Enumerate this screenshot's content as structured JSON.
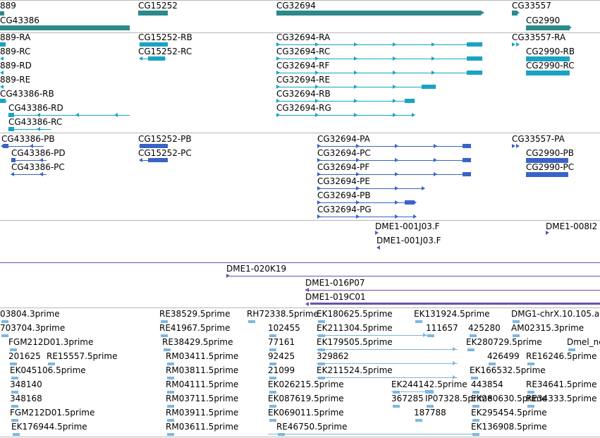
{
  "colors": {
    "gene": "#2c8a8a",
    "mrna_teal": "#1ba3c4",
    "mrna_blue": "#3a63c6",
    "est_purple": "#6b4fae",
    "est_light": "#7fb6dd",
    "separator": "#b7b7b7"
  },
  "tracks": {
    "genes": [
      {
        "label": "889"
      },
      {
        "label": "CG43386"
      },
      {
        "label": "CG15252"
      },
      {
        "label": "CG32694"
      },
      {
        "label": "CG33557"
      },
      {
        "label": "CG2990"
      }
    ],
    "transcripts_a": [
      {
        "label": "889-RA"
      },
      {
        "label": "889-RC"
      },
      {
        "label": "889-RD"
      },
      {
        "label": "889-RE"
      },
      {
        "label": "CG43386-RB"
      },
      {
        "label": "CG43386-RD"
      },
      {
        "label": "CG43386-RC"
      },
      {
        "label": "CG15252-RB"
      },
      {
        "label": "CG15252-RC"
      },
      {
        "label": "CG32694-RA"
      },
      {
        "label": "CG32694-RC"
      },
      {
        "label": "CG32694-RF"
      },
      {
        "label": "CG32694-RE"
      },
      {
        "label": "CG32694-RB"
      },
      {
        "label": "CG32694-RG"
      },
      {
        "label": "CG33557-RA"
      },
      {
        "label": "CG2990-RB"
      },
      {
        "label": "CG2990-RC"
      }
    ],
    "transcripts_b": [
      {
        "label": "CG43386-PB"
      },
      {
        "label": "CG43386-PD"
      },
      {
        "label": "CG43386-PC"
      },
      {
        "label": "CG15252-PB"
      },
      {
        "label": "CG15252-PC"
      },
      {
        "label": "CG32694-PA"
      },
      {
        "label": "CG32694-PC"
      },
      {
        "label": "CG32694-PF"
      },
      {
        "label": "CG32694-PE"
      },
      {
        "label": "CG32694-PB"
      },
      {
        "label": "CG32694-PG"
      },
      {
        "label": "CG33557-PA"
      },
      {
        "label": "CG2990-PB"
      },
      {
        "label": "CG2990-PC"
      }
    ],
    "clones_a": [
      {
        "label": "DME1-001J03.F"
      },
      {
        "label": "DME1-008I2"
      },
      {
        "label": "DME1-001J03.F"
      }
    ],
    "clones_b": [
      {
        "label": "DME1-020K19"
      },
      {
        "label": "DME1-016P07"
      },
      {
        "label": "DME1-019C01"
      }
    ],
    "ests": [
      {
        "label": "03804.3prime"
      },
      {
        "label": "RE38529.5prime"
      },
      {
        "label": "RH72338.5prime"
      },
      {
        "label": "EK180625.5prime"
      },
      {
        "label": "EK131924.5prime"
      },
      {
        "label": "DMG1-chrX.10.105.a"
      },
      {
        "label": "703704.3prime"
      },
      {
        "label": "RE41967.5prime"
      },
      {
        "label": "102455"
      },
      {
        "label": "EK211304.5prime"
      },
      {
        "label": "111657"
      },
      {
        "label": "425280"
      },
      {
        "label": "AM02315.3prime"
      },
      {
        "label": "FGM212D01.3prime"
      },
      {
        "label": "RE38429.5prime"
      },
      {
        "label": "77161"
      },
      {
        "label": "EK179505.5prime"
      },
      {
        "label": "EK280729.5prime"
      },
      {
        "label": "Dmel_ne"
      },
      {
        "label": "201625"
      },
      {
        "label": "RE15557.5prime"
      },
      {
        "label": "RM03411.5prime"
      },
      {
        "label": "92425"
      },
      {
        "label": "329862"
      },
      {
        "label": "426499"
      },
      {
        "label": "RE16246.5prime"
      },
      {
        "label": "EK045106.5prime"
      },
      {
        "label": "RM03811.5prime"
      },
      {
        "label": "21099"
      },
      {
        "label": "EK211524.5prime"
      },
      {
        "label": "EK166532.5prime"
      },
      {
        "label": "348140"
      },
      {
        "label": "RM04111.5prime"
      },
      {
        "label": "EK026215.5prime"
      },
      {
        "label": "EK244142.5prime"
      },
      {
        "label": "443854"
      },
      {
        "label": "RE34641.5prime"
      },
      {
        "label": "348168"
      },
      {
        "label": "RM03711.5prime"
      },
      {
        "label": "EK087619.5prime"
      },
      {
        "label": "367285"
      },
      {
        "label": "IP07328.5prime"
      },
      {
        "label": "EK280630.5prime"
      },
      {
        "label": "RE34333.5prime"
      },
      {
        "label": "FGM212D01.5prime"
      },
      {
        "label": "RM03911.5prime"
      },
      {
        "label": "EK069011.5prime"
      },
      {
        "label": "187788"
      },
      {
        "label": "EK295454.5prime"
      },
      {
        "label": "EK176944.5prime"
      },
      {
        "label": "RM03611.5prime"
      },
      {
        "label": "RE46750.5prime"
      },
      {
        "label": "EK136908.5prime"
      }
    ]
  }
}
